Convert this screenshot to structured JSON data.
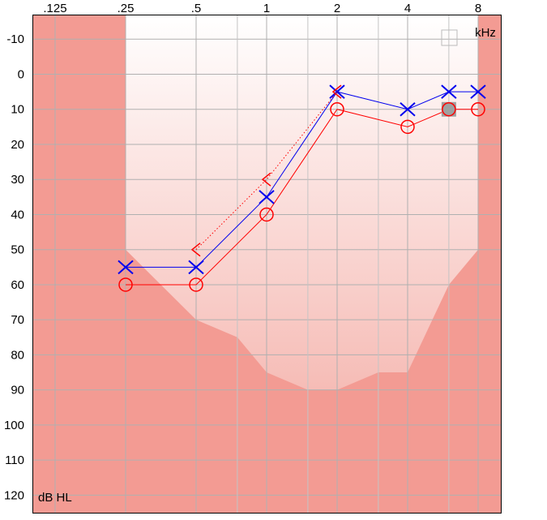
{
  "chart_data": {
    "type": "audiogram",
    "x_unit_label": "kHz",
    "y_unit_label": "dB HL",
    "xscale": "log",
    "xlim": [
      0.1,
      10
    ],
    "xticks": [
      {
        "value": 0.125,
        "label": ".125"
      },
      {
        "value": 0.25,
        "label": ".25"
      },
      {
        "value": 0.5,
        "label": ".5"
      },
      1,
      2,
      4,
      8
    ],
    "xminor": [
      0.75,
      1.5,
      3,
      6
    ],
    "ylim": [
      -17,
      125
    ],
    "y_inverted": true,
    "yticks": [
      -10,
      0,
      10,
      20,
      30,
      40,
      50,
      60,
      70,
      80,
      90,
      100,
      110,
      120
    ],
    "grid": true,
    "region": {
      "x": [
        0.25,
        0.5,
        0.75,
        1,
        1.5,
        2,
        3,
        4,
        6,
        8
      ],
      "values": [
        50,
        70,
        75,
        85,
        90,
        90,
        85,
        85,
        60,
        50
      ],
      "color": "#f39b93"
    },
    "highlight_x": 6,
    "series": [
      {
        "marker": "circle",
        "color": "#ff0000",
        "line_style": "solid",
        "x": [
          0.25,
          0.5,
          1,
          2,
          4,
          6,
          8
        ],
        "values": [
          60,
          60,
          40,
          10,
          15,
          10,
          10
        ]
      },
      {
        "marker": "x",
        "color": "#0000ee",
        "line_style": "solid",
        "x": [
          0.25,
          0.5,
          1,
          2,
          4,
          6,
          8
        ],
        "values": [
          55,
          55,
          35,
          5,
          10,
          5,
          5
        ]
      },
      {
        "marker": "bracket",
        "color": "#ff0000",
        "line_style": "dotted",
        "x": [
          0.5,
          1,
          2
        ],
        "values": [
          50,
          30,
          5
        ]
      }
    ]
  }
}
